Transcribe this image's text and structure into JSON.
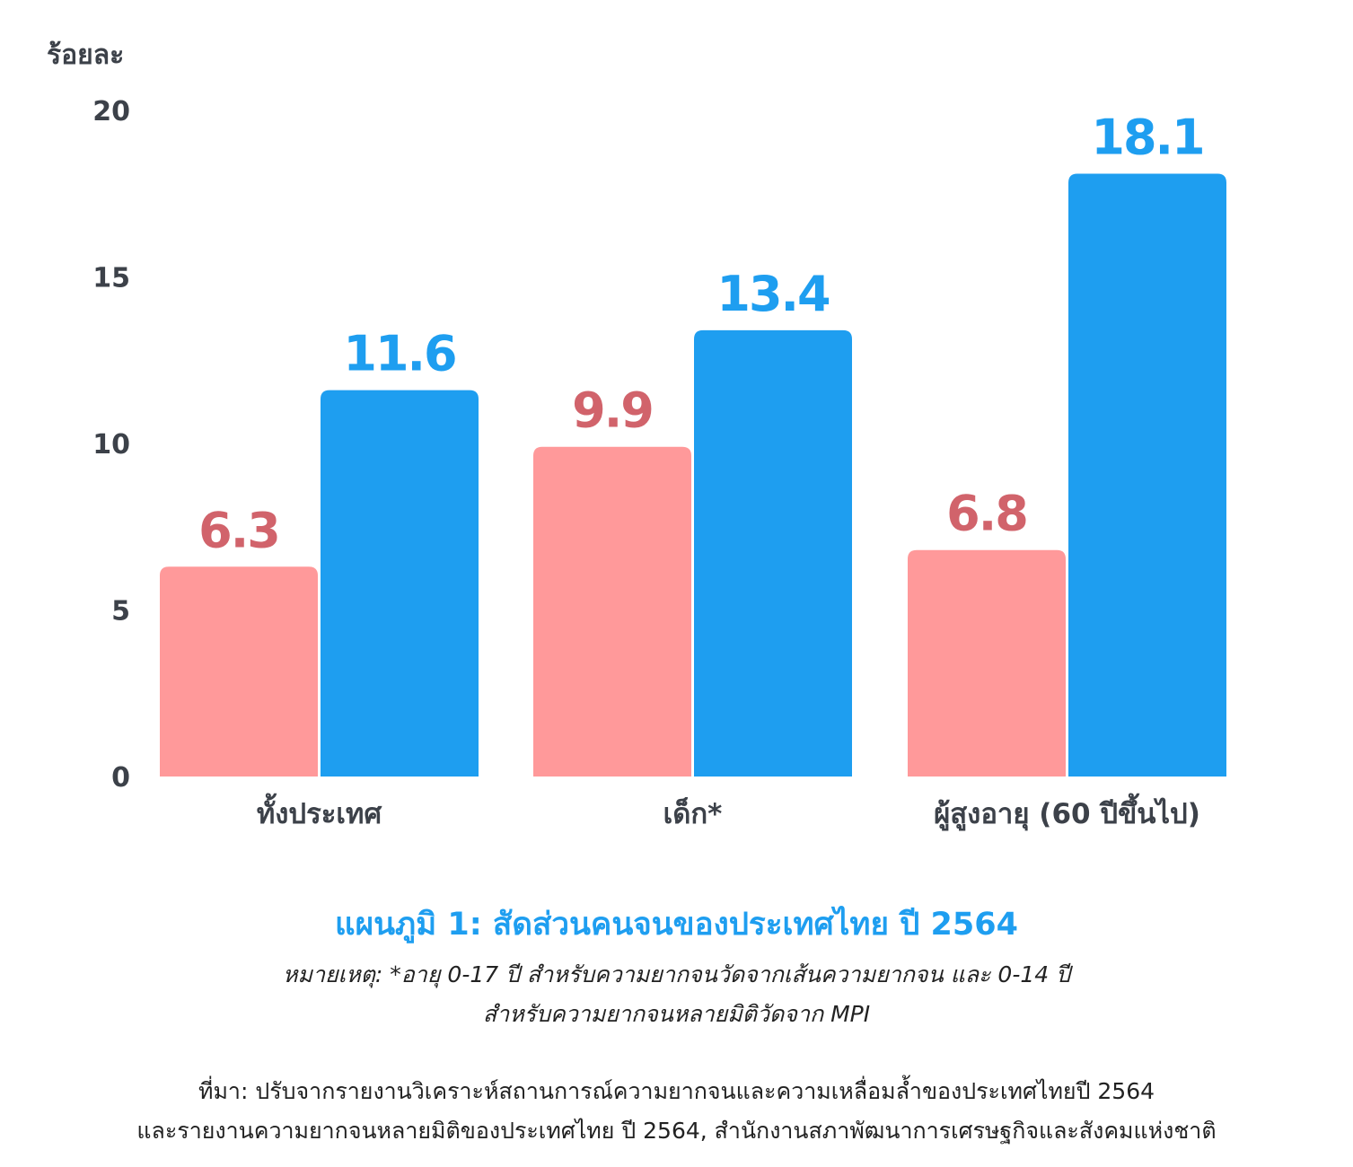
{
  "chart_data": {
    "type": "bar",
    "ylabel": "ร้อยละ",
    "ylim": [
      0,
      20
    ],
    "yticks": [
      0,
      5,
      10,
      15,
      20
    ],
    "grid": false,
    "categories": [
      "ทั้งประเทศ",
      "เด็ก*",
      "ผู้สูงอายุ (60 ปีขึ้นไป)"
    ],
    "series": [
      {
        "values": [
          6.3,
          9.9,
          6.8
        ],
        "color": "#ff999a",
        "label_color": "#d1636b"
      },
      {
        "values": [
          11.6,
          13.4,
          18.1
        ],
        "color": "#1e9ef0",
        "label_color": "#1e9ef0"
      }
    ],
    "data_labels": [
      [
        "6.3",
        "9.9",
        "6.8"
      ],
      [
        "11.6",
        "13.4",
        "18.1"
      ]
    ]
  },
  "caption": {
    "title": "แผนภูมิ 1: สัดส่วนคนจนของประเทศไทย ปี 2564",
    "note_line1": "หมายเหตุ: *อายุ 0-17 ปี สำหรับความยากจนวัดจากเส้นความยากจน และ 0-14 ปี",
    "note_line2": "สำหรับความยากจนหลายมิติวัดจาก MPI",
    "source_line1": "ที่มา: ปรับจากรายงานวิเคราะห์สถานการณ์ความยากจนและความเหลื่อมล้ำของประเทศไทยปี 2564",
    "source_line2": "และรายงานความยากจนหลายมิติของประเทศไทย ปี 2564, สำนักงานสภาพัฒนาการเศรษฐกิจและสังคมแห่งชาติ"
  },
  "colors": {
    "axis_text": "#3c4149",
    "accent": "#1e9ef0"
  }
}
